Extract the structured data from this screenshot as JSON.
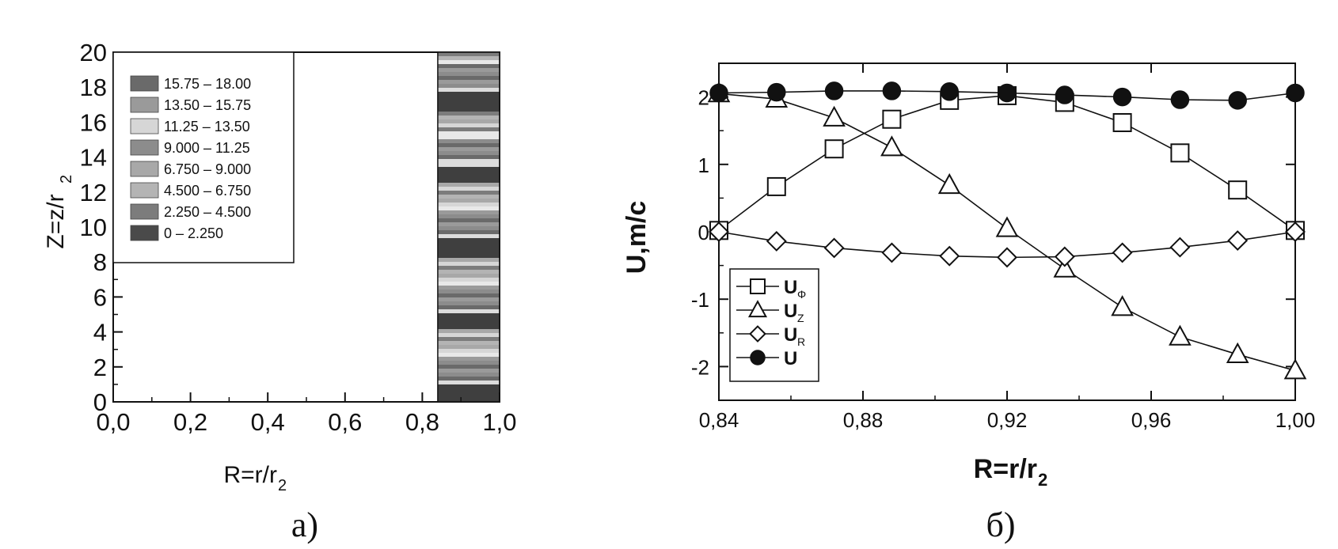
{
  "panels": {
    "a": {
      "caption": "а)",
      "chart_data": {
        "type": "heatmap",
        "xlabel": "R=r/r",
        "xlabel_sub": "2",
        "ylabel": "Z=z/r",
        "ylabel_sub": "2",
        "xlim": [
          0.0,
          1.0
        ],
        "ylim": [
          0,
          20
        ],
        "x_ticks": [
          "0,0",
          "0,2",
          "0,4",
          "0,6",
          "0,8",
          "1,0"
        ],
        "y_ticks": [
          "0",
          "2",
          "4",
          "6",
          "8",
          "10",
          "12",
          "14",
          "16",
          "18",
          "20"
        ],
        "band_x_range": [
          0.84,
          1.0
        ],
        "legend": [
          {
            "label": "15.75  –  18.00",
            "color": "#6a6a6a"
          },
          {
            "label": "13.50  –  15.75",
            "color": "#9a9a9a"
          },
          {
            "label": "11.25  –  13.50",
            "color": "#d6d6d6"
          },
          {
            "label": "9.000  –  11.25",
            "color": "#8c8c8c"
          },
          {
            "label": "6.750  –  9.000",
            "color": "#a8a8a8"
          },
          {
            "label": "4.500  –  6.750",
            "color": "#b4b4b4"
          },
          {
            "label": "2.250  –  4.500",
            "color": "#7c7c7c"
          },
          {
            "label": "0  –  2.250",
            "color": "#4a4a4a"
          }
        ]
      }
    },
    "b": {
      "caption": "б)",
      "chart_data": {
        "type": "line",
        "xlabel": "R=r/r",
        "xlabel_sub": "2",
        "ylabel": "U,m/c",
        "xlim": [
          0.84,
          1.0
        ],
        "ylim": [
          -2.5,
          2.5
        ],
        "x_ticks": [
          "0,84",
          "0,88",
          "0,92",
          "0,96",
          "1,00"
        ],
        "x_tick_values": [
          0.84,
          0.88,
          0.92,
          0.96,
          1.0
        ],
        "y_ticks": [
          "2",
          "1",
          "0",
          "-1",
          "-2"
        ],
        "y_tick_values": [
          2,
          1,
          0,
          -1,
          -2
        ],
        "x": [
          0.84,
          0.856,
          0.872,
          0.888,
          0.904,
          0.92,
          0.936,
          0.952,
          0.968,
          0.984,
          1.0
        ],
        "series": [
          {
            "name": "U",
            "sub": "Φ",
            "marker": "square",
            "values": [
              0.02,
              0.67,
              1.23,
              1.67,
              1.95,
              2.02,
              1.92,
              1.62,
              1.17,
              0.62,
              0.02
            ]
          },
          {
            "name": "U",
            "sub": "Z",
            "marker": "triangle",
            "values": [
              2.05,
              1.97,
              1.69,
              1.25,
              0.69,
              0.05,
              -0.55,
              -1.12,
              -1.56,
              -1.82,
              -2.06
            ]
          },
          {
            "name": "U",
            "sub": "R",
            "marker": "diamond",
            "values": [
              0.0,
              -0.14,
              -0.24,
              -0.31,
              -0.36,
              -0.38,
              -0.37,
              -0.31,
              -0.23,
              -0.13,
              0.0
            ]
          },
          {
            "name": "U",
            "sub": "",
            "marker": "circle",
            "values": [
              2.06,
              2.07,
              2.09,
              2.09,
              2.08,
              2.06,
              2.03,
              2.0,
              1.96,
              1.95,
              2.06
            ]
          }
        ]
      }
    }
  }
}
